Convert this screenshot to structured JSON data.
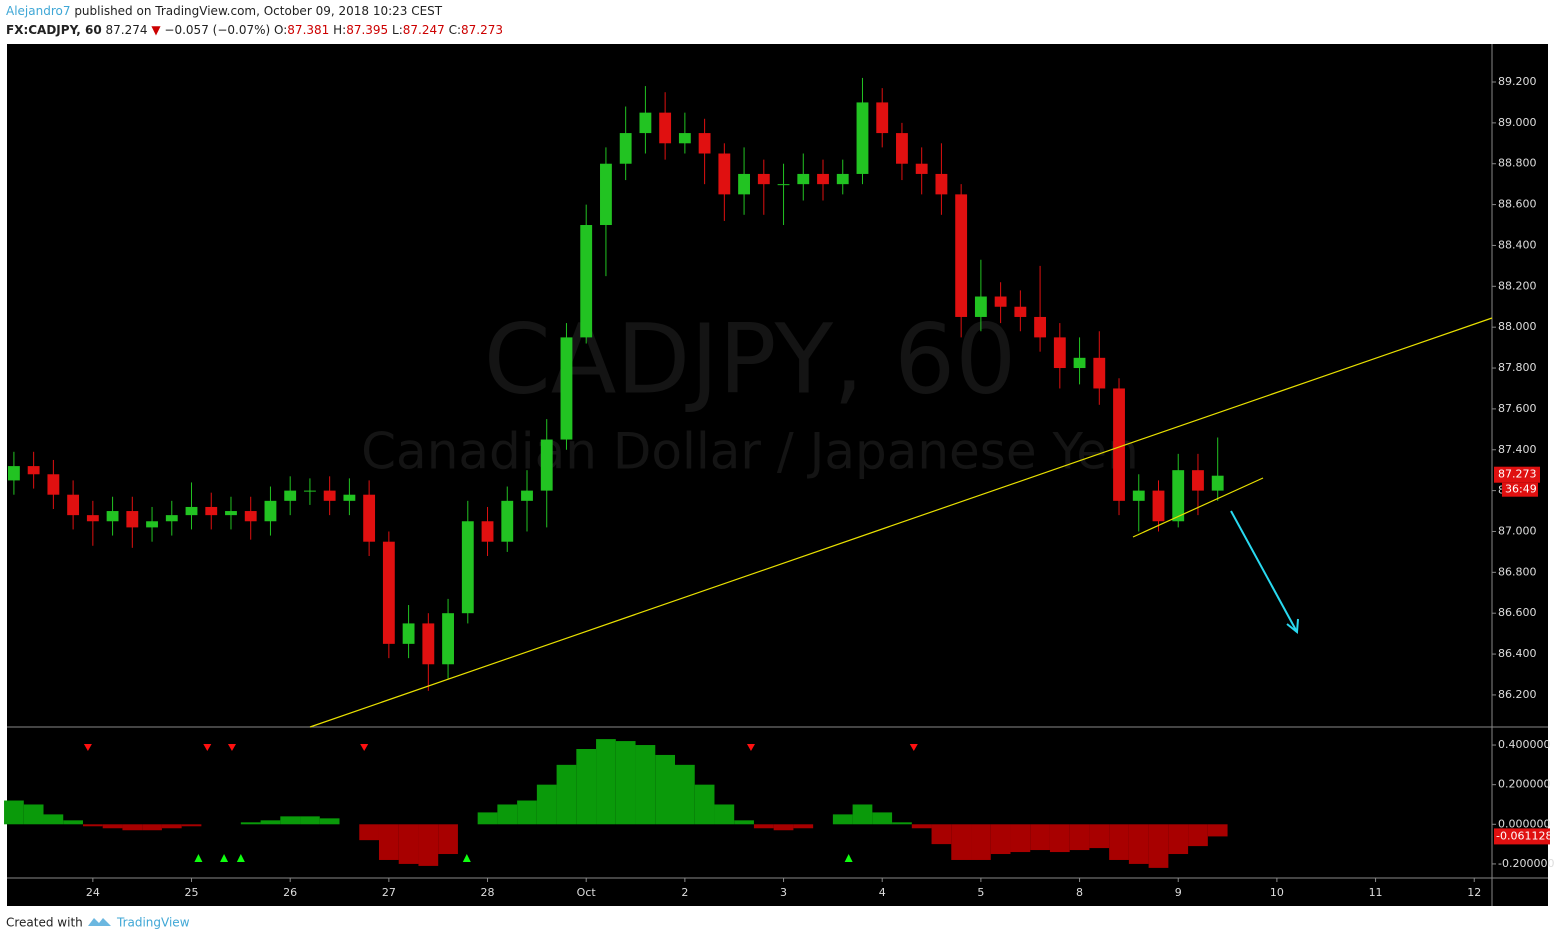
{
  "header": {
    "author": "Alejandro7",
    "published": "published on TradingView.com, October 09, 2018 10:23 CEST",
    "symbol": "FX:CADJPY, 60",
    "last": 87.274,
    "change": "−0.057 (−0.07%)",
    "open_label": "O:",
    "open": 87.381,
    "high_label": "H:",
    "high": 87.395,
    "low_label": "L:",
    "low": 87.247,
    "close_label": "C:",
    "close": 87.273
  },
  "footer": {
    "created": "Created with",
    "brand": "TradingView"
  },
  "chart_data": [
    {
      "type": "candlestick",
      "watermark": "CADJPY, 60",
      "watermark_subtitle": "Canadian Dollar / Japanese Yen",
      "up_color": "#22c322",
      "down_color": "#e01010",
      "countdown": "36:49",
      "x": [
        -0.8,
        -0.6,
        -0.4,
        -0.2,
        0,
        0.2,
        0.4,
        0.6,
        0.8,
        1,
        1.2,
        1.4,
        1.6,
        1.8,
        2,
        2.2,
        2.4,
        2.6,
        2.8,
        3,
        3.2,
        3.4,
        3.6,
        3.8,
        4,
        4.2,
        4.4,
        4.6,
        4.8,
        5,
        5.2,
        5.4,
        5.6,
        5.8,
        6,
        6.2,
        6.4,
        6.6,
        6.8,
        7,
        7.2,
        7.4,
        7.6,
        7.8,
        8,
        8.2,
        8.4,
        8.6,
        8.8,
        9,
        9.2,
        9.4,
        9.6,
        9.8,
        10,
        10.2,
        10.4,
        10.6,
        10.8,
        11,
        11.2,
        11.4
      ],
      "open": [
        87.25,
        87.32,
        87.28,
        87.18,
        87.08,
        87.05,
        87.1,
        87.02,
        87.05,
        87.08,
        87.12,
        87.08,
        87.1,
        87.05,
        87.15,
        87.2,
        87.2,
        87.15,
        87.18,
        86.95,
        86.45,
        86.55,
        86.35,
        86.6,
        87.05,
        86.95,
        87.15,
        87.2,
        87.45,
        87.95,
        88.5,
        88.8,
        88.95,
        89.05,
        88.9,
        88.95,
        88.85,
        88.65,
        88.75,
        88.7,
        88.7,
        88.75,
        88.7,
        88.75,
        89.1,
        88.95,
        88.8,
        88.75,
        88.65,
        88.05,
        88.15,
        88.1,
        88.05,
        87.95,
        87.8,
        87.85,
        87.7,
        87.15,
        87.2,
        87.05,
        87.3,
        87.2
      ],
      "high": [
        87.39,
        87.39,
        87.35,
        87.25,
        87.15,
        87.17,
        87.17,
        87.12,
        87.15,
        87.24,
        87.19,
        87.17,
        87.17,
        87.22,
        87.27,
        87.26,
        87.27,
        87.26,
        87.25,
        87.0,
        86.64,
        86.6,
        86.67,
        87.15,
        87.12,
        87.22,
        87.3,
        87.55,
        88.02,
        88.6,
        88.88,
        89.08,
        89.18,
        89.15,
        89.05,
        89.02,
        88.9,
        88.88,
        88.82,
        88.8,
        88.85,
        88.82,
        88.82,
        89.22,
        89.17,
        89.0,
        88.88,
        88.9,
        88.7,
        88.33,
        88.22,
        88.18,
        88.3,
        88.02,
        87.95,
        87.98,
        87.75,
        87.28,
        87.25,
        87.38,
        87.38,
        87.46
      ],
      "low": [
        87.18,
        87.21,
        87.11,
        87.01,
        86.93,
        86.98,
        86.92,
        86.95,
        86.98,
        87.01,
        87.01,
        87.01,
        86.96,
        86.98,
        87.08,
        87.13,
        87.08,
        87.08,
        86.88,
        86.38,
        86.38,
        86.22,
        86.28,
        86.55,
        86.88,
        86.9,
        87.0,
        87.02,
        87.4,
        87.92,
        88.25,
        88.72,
        88.85,
        88.82,
        88.85,
        88.7,
        88.52,
        88.55,
        88.55,
        88.5,
        88.62,
        88.62,
        88.65,
        88.7,
        88.88,
        88.72,
        88.65,
        88.55,
        87.95,
        87.98,
        88.02,
        87.98,
        87.88,
        87.7,
        87.72,
        87.62,
        87.08,
        87.0,
        87.0,
        87.02,
        87.08,
        87.15
      ],
      "close": [
        87.32,
        87.28,
        87.18,
        87.08,
        87.05,
        87.1,
        87.02,
        87.05,
        87.08,
        87.12,
        87.08,
        87.1,
        87.05,
        87.15,
        87.2,
        87.2,
        87.15,
        87.18,
        86.95,
        86.45,
        86.55,
        86.35,
        86.6,
        87.05,
        86.95,
        87.15,
        87.2,
        87.45,
        87.95,
        88.5,
        88.8,
        88.95,
        89.05,
        88.9,
        88.95,
        88.85,
        88.65,
        88.75,
        88.7,
        88.7,
        88.75,
        88.7,
        88.75,
        89.1,
        88.95,
        88.8,
        88.75,
        88.65,
        88.05,
        88.15,
        88.1,
        88.05,
        87.95,
        87.8,
        87.85,
        87.7,
        87.15,
        87.2,
        87.05,
        87.3,
        87.2,
        87.273
      ],
      "xlim": [
        -0.87,
        14.18
      ],
      "xticks": [
        {
          "value": 0,
          "label": "24"
        },
        {
          "value": 1,
          "label": "25"
        },
        {
          "value": 2,
          "label": "26"
        },
        {
          "value": 3,
          "label": "27"
        },
        {
          "value": 4,
          "label": "28"
        },
        {
          "value": 5,
          "label": "Oct"
        },
        {
          "value": 6,
          "label": "2"
        },
        {
          "value": 7,
          "label": "3"
        },
        {
          "value": 8,
          "label": "4"
        },
        {
          "value": 9,
          "label": "5"
        },
        {
          "value": 10,
          "label": "8"
        },
        {
          "value": 11,
          "label": "9"
        },
        {
          "value": 12,
          "label": "10"
        },
        {
          "value": 13,
          "label": "11"
        },
        {
          "value": 14,
          "label": "12"
        }
      ],
      "ylim": [
        86.043,
        89.386
      ],
      "yticks": [
        {
          "value": 86.2,
          "label": "86.200"
        },
        {
          "value": 86.4,
          "label": "86.400"
        },
        {
          "value": 86.6,
          "label": "86.600"
        },
        {
          "value": 86.8,
          "label": "86.800"
        },
        {
          "value": 87.0,
          "label": "87.000"
        },
        {
          "value": 87.2,
          "label": "87.200"
        },
        {
          "value": 87.4,
          "label": "87.400"
        },
        {
          "value": 87.6,
          "label": "87.600"
        },
        {
          "value": 87.8,
          "label": "87.800"
        },
        {
          "value": 88.0,
          "label": "88.000"
        },
        {
          "value": 88.2,
          "label": "88.200"
        },
        {
          "value": 88.4,
          "label": "88.400"
        },
        {
          "value": 88.6,
          "label": "88.600"
        },
        {
          "value": 88.8,
          "label": "88.800"
        },
        {
          "value": 89.0,
          "label": "89.000"
        },
        {
          "value": 89.2,
          "label": "89.200"
        }
      ]
    },
    {
      "type": "bar",
      "pos_color": "#0a9a0a",
      "neg_color": "#a80000",
      "signal_down_color": "#ff1010",
      "signal_up_color": "#10ff10",
      "x": [
        -0.8,
        -0.6,
        -0.4,
        -0.2,
        0,
        0.2,
        0.4,
        0.6,
        0.8,
        1,
        1.2,
        1.4,
        1.6,
        1.8,
        2,
        2.2,
        2.4,
        2.6,
        2.8,
        3,
        3.2,
        3.4,
        3.6,
        3.8,
        4,
        4.2,
        4.4,
        4.6,
        4.8,
        5,
        5.2,
        5.4,
        5.6,
        5.8,
        6,
        6.2,
        6.4,
        6.6,
        6.8,
        7,
        7.2,
        7.4,
        7.6,
        7.8,
        8,
        8.2,
        8.4,
        8.6,
        8.8,
        9,
        9.2,
        9.4,
        9.6,
        9.8,
        10,
        10.2,
        10.4,
        10.6,
        10.8,
        11,
        11.2,
        11.4
      ],
      "values": [
        0.12,
        0.1,
        0.05,
        0.02,
        -0.01,
        -0.02,
        -0.03,
        -0.03,
        -0.02,
        -0.01,
        0.0,
        0.0,
        0.01,
        0.02,
        0.04,
        0.04,
        0.03,
        0.0,
        -0.08,
        -0.18,
        -0.2,
        -0.21,
        -0.15,
        0.0,
        0.06,
        0.1,
        0.12,
        0.2,
        0.3,
        0.38,
        0.43,
        0.42,
        0.4,
        0.35,
        0.3,
        0.2,
        0.1,
        0.02,
        -0.02,
        -0.03,
        -0.02,
        0.0,
        0.05,
        0.1,
        0.06,
        0.01,
        -0.02,
        -0.1,
        -0.18,
        -0.18,
        -0.15,
        -0.14,
        -0.13,
        -0.14,
        -0.13,
        -0.12,
        -0.18,
        -0.2,
        -0.22,
        -0.15,
        -0.11,
        -0.061128
      ],
      "sell_signals_x": [
        -0.05,
        1.16,
        1.41,
        2.75,
        6.67,
        8.32
      ],
      "buy_signals_x": [
        1.07,
        1.33,
        1.5,
        3.79,
        7.66
      ],
      "ylim": [
        -0.271,
        0.491
      ],
      "yticks": [
        {
          "value": -0.2,
          "label": "-0.200000"
        },
        {
          "value": 0,
          "label": "0.000000"
        },
        {
          "value": 0.2,
          "label": "0.200000"
        },
        {
          "value": 0.4,
          "label": "0.400000"
        }
      ]
    }
  ]
}
